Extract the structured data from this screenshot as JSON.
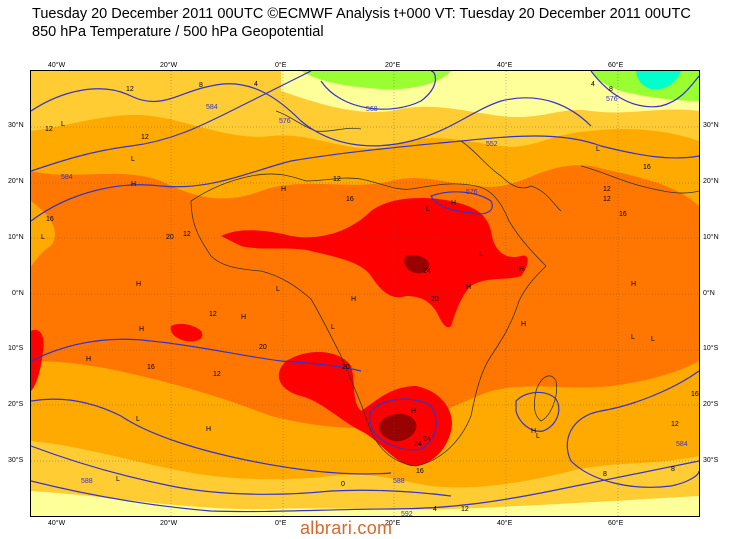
{
  "header": {
    "title_line1": "Tuesday 20 December 2011 00UTC ©ECMWF Analysis t+000 VT: Tuesday 20 December 2011 00UTC",
    "title_line2": "850 hPa Temperature / 500 hPa Geopotential"
  },
  "axes": {
    "lon_ticks": [
      "40°W",
      "20°W",
      "0°E",
      "20°E",
      "40°E",
      "60°E"
    ],
    "lat_ticks": [
      "30°N",
      "20°N",
      "10°N",
      "0°N",
      "10°S",
      "20°S",
      "30°S"
    ]
  },
  "temperature_labels": [
    "12",
    "8",
    "12",
    "16",
    "12",
    "16",
    "20",
    "20",
    "24",
    "20",
    "12",
    "16",
    "20",
    "24",
    "24",
    "16",
    "12",
    "12",
    "16",
    "12",
    "12",
    "16",
    "12",
    "8",
    "4",
    "4",
    "8",
    "0",
    "4",
    "8",
    "12",
    "16",
    "12",
    "24",
    "20",
    "16",
    "12",
    "4",
    "8"
  ],
  "geopotential_labels": [
    "584",
    "576",
    "568",
    "576",
    "584",
    "552",
    "576",
    "588",
    "592",
    "588",
    "584",
    "576",
    "588",
    "584",
    "584",
    "592",
    "588"
  ],
  "pressure_centres": [
    "L",
    "H",
    "L",
    "L",
    "L",
    "H",
    "H",
    "L",
    "H",
    "H",
    "L",
    "H",
    "H",
    "L",
    "H",
    "L",
    "H",
    "L",
    "H",
    "H",
    "L",
    "H",
    "L",
    "H",
    "L",
    "H",
    "L",
    "H"
  ],
  "watermark": "albrari.com",
  "colors": {
    "temp_4": "#ffff99",
    "temp_8": "#ffcc33",
    "temp_12": "#ffaa00",
    "temp_16": "#ff7700",
    "temp_20": "#ff6600",
    "temp_24": "#ff0000",
    "temp_28": "#990000",
    "temp_cold_green": "#99ff33",
    "temp_cold_cyan": "#00ffcc",
    "geopotential_line": "#3333cc",
    "coastline": "#333333",
    "watermark": "#d9662a"
  }
}
